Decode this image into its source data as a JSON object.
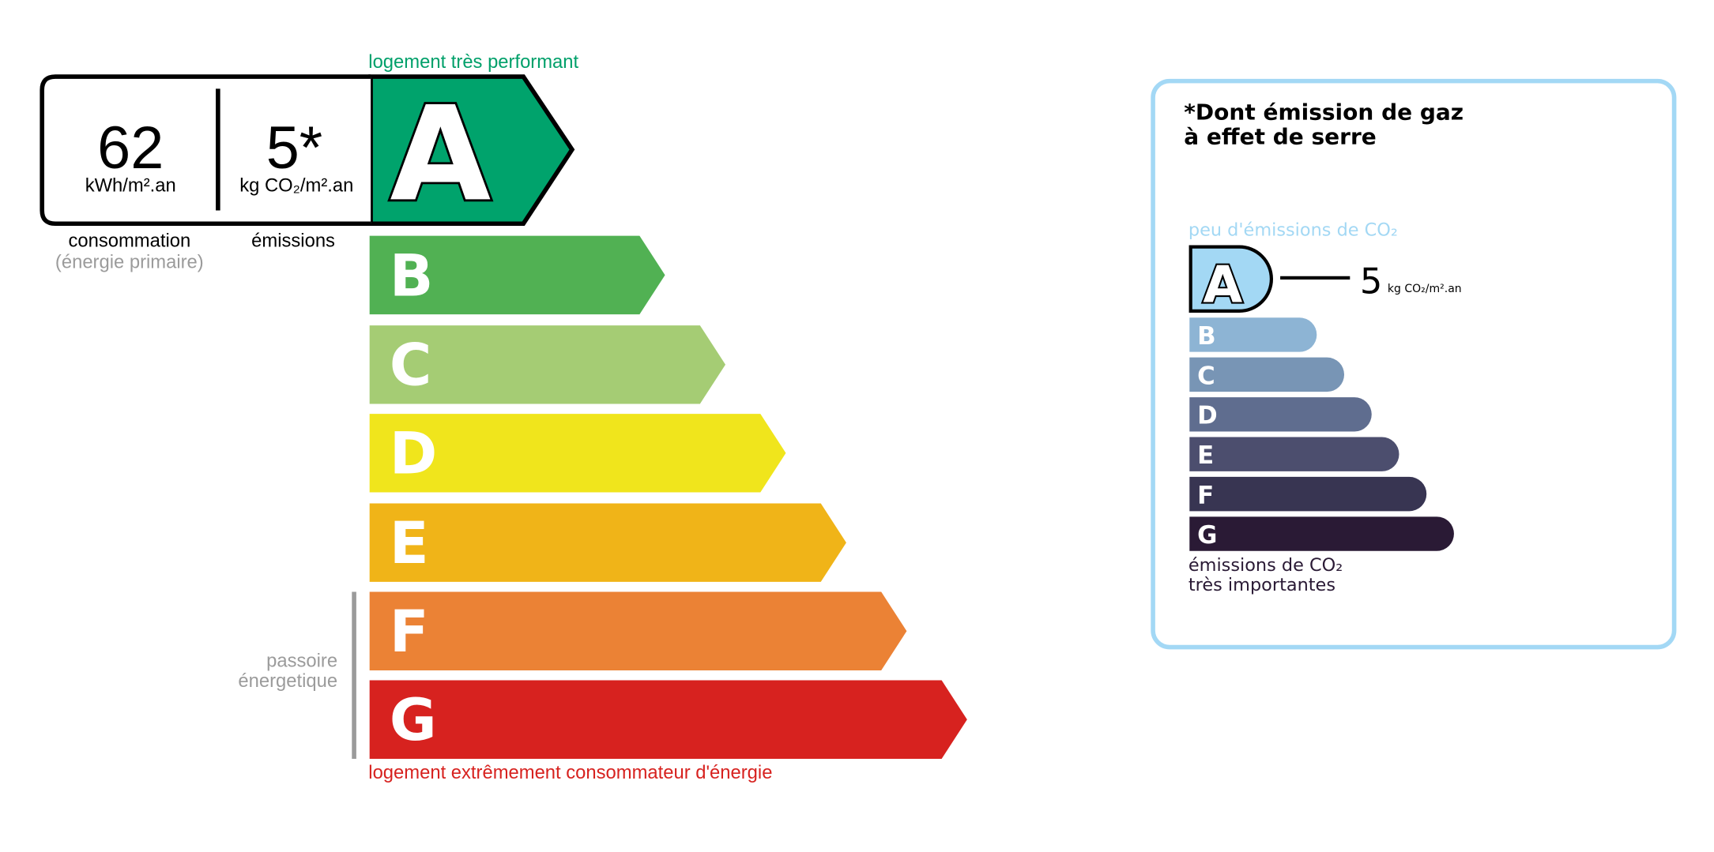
{
  "energy": {
    "top_label": "logement très performant",
    "bottom_label": "logement extrêmement consommateur d'énergie",
    "consumption_value": "62",
    "consumption_unit": "kWh/m².an",
    "emission_value": "5*",
    "emission_unit": "kg CO₂/m².an",
    "consumption_label": "consommation",
    "consumption_sublabel": "(énergie primaire)",
    "emission_label": "émissions",
    "current_class": "A",
    "passoire_line1": "passoire",
    "passoire_line2": "énergetique",
    "classes": [
      {
        "letter": "A",
        "color": "#00a36c"
      },
      {
        "letter": "B",
        "color": "#51b153"
      },
      {
        "letter": "C",
        "color": "#a5cc74"
      },
      {
        "letter": "D",
        "color": "#f0e51c"
      },
      {
        "letter": "E",
        "color": "#f0b418"
      },
      {
        "letter": "F",
        "color": "#eb8235"
      },
      {
        "letter": "G",
        "color": "#d7221f"
      }
    ],
    "colors": {
      "top_label": "#00a06a",
      "bottom_label": "#d7221f",
      "muted": "#9b9b9b"
    }
  },
  "ghg": {
    "title_line1": "*Dont émission de gaz",
    "title_line2": "à effet de serre",
    "top_label": "peu d'émissions de CO₂",
    "bottom_line1": "émissions de CO₂",
    "bottom_line2": "très importantes",
    "current_class": "A",
    "value": "5",
    "unit": "kg CO₂/m².an",
    "classes": [
      {
        "letter": "A",
        "color": "#a3d8f4"
      },
      {
        "letter": "B",
        "color": "#8db4d4"
      },
      {
        "letter": "C",
        "color": "#7895b5"
      },
      {
        "letter": "D",
        "color": "#5f6d8f"
      },
      {
        "letter": "E",
        "color": "#4c4e6e"
      },
      {
        "letter": "F",
        "color": "#383552"
      },
      {
        "letter": "G",
        "color": "#2a1a35"
      }
    ],
    "colors": {
      "border": "#a3d8f5",
      "top_label": "#a3d8f4",
      "text": "#2a1a35"
    }
  }
}
